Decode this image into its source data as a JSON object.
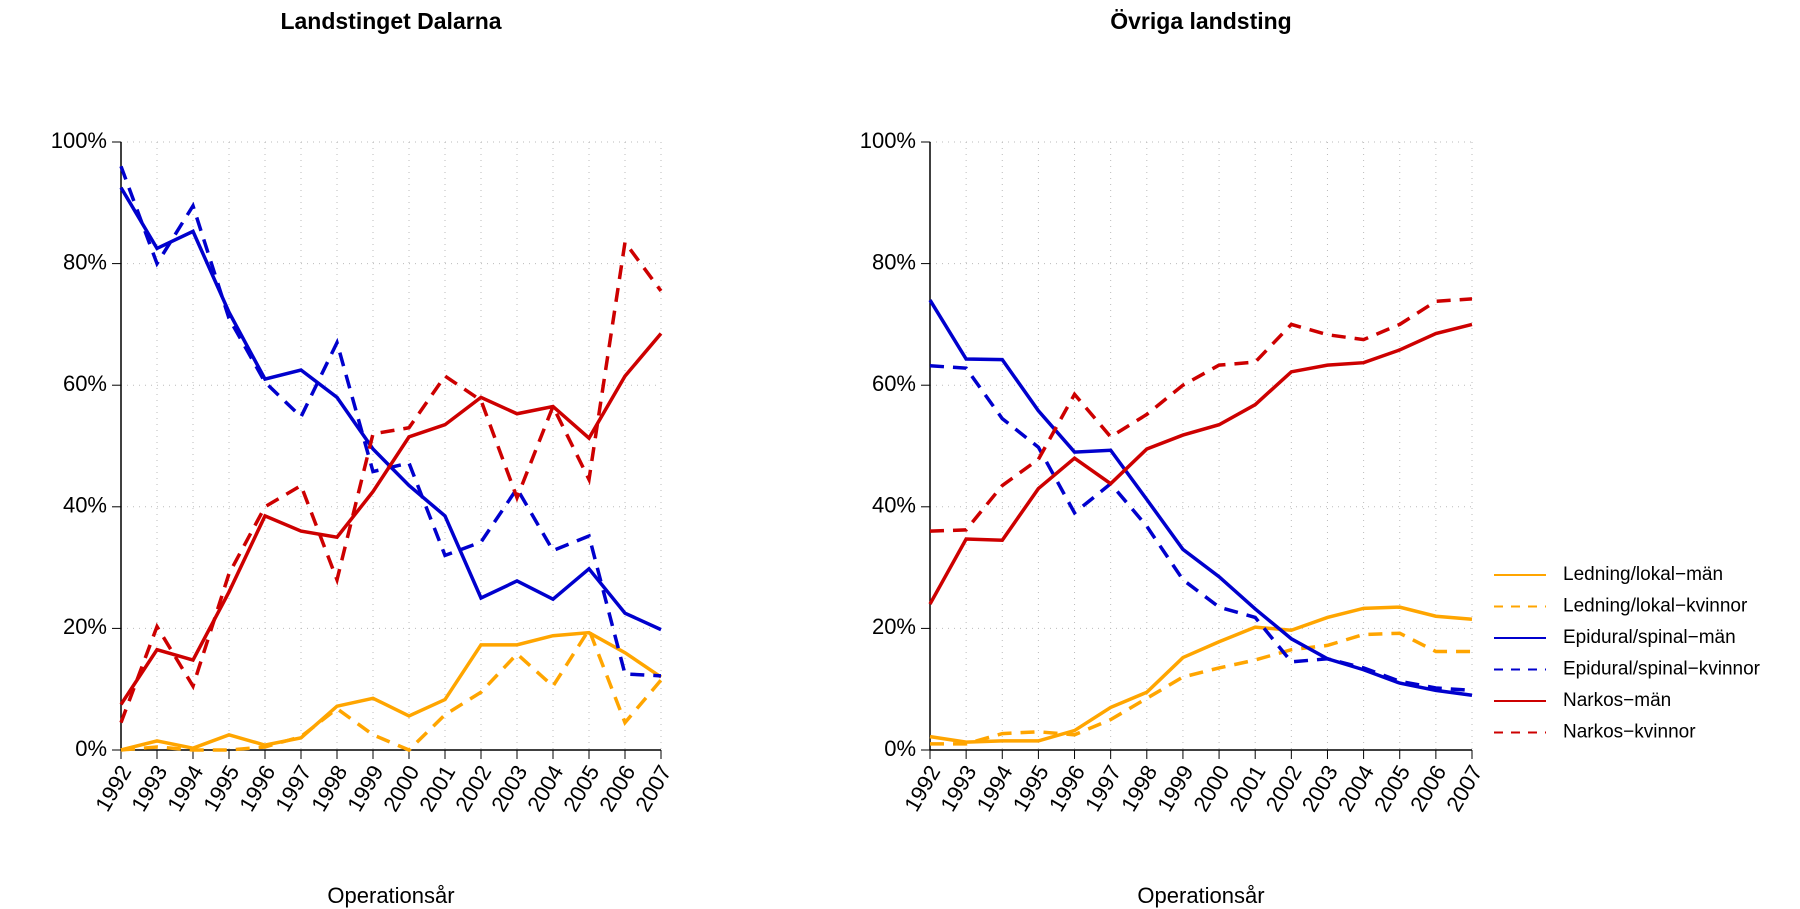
{
  "chart_data": [
    {
      "type": "line",
      "title": "Landstinget Dalarna",
      "x_label": "Operationsår",
      "x": [
        1992,
        1993,
        1994,
        1995,
        1996,
        1997,
        1998,
        1999,
        2000,
        2001,
        2002,
        2003,
        2004,
        2005,
        2006,
        2007
      ],
      "xlim": [
        1992,
        2007
      ],
      "xticks": [
        1992,
        1993,
        1994,
        1995,
        1996,
        1997,
        1998,
        1999,
        2000,
        2001,
        2002,
        2003,
        2004,
        2005,
        2006,
        2007
      ],
      "ylim": [
        0,
        100
      ],
      "yticks": [
        {
          "value": 0,
          "label": "0%"
        },
        {
          "value": 20,
          "label": "20%"
        },
        {
          "value": 40,
          "label": "40%"
        },
        {
          "value": 60,
          "label": "60%"
        },
        {
          "value": 80,
          "label": "80%"
        },
        {
          "value": 100,
          "label": "100%"
        }
      ],
      "grid": true,
      "series": [
        {
          "color": "#ffa500",
          "linestyle": "solid",
          "values": [
            0,
            1.5,
            0.3,
            2.5,
            0.8,
            2,
            7.2,
            8.5,
            5.6,
            8.3,
            17.3,
            17.3,
            18.8,
            19.3,
            16,
            12
          ]
        },
        {
          "color": "#ffa500",
          "linestyle": "dashed",
          "values": [
            0,
            0.5,
            0,
            0,
            0.5,
            2.2,
            6.8,
            2.5,
            0,
            5.8,
            9.5,
            15.8,
            10.5,
            19.8,
            4.5,
            11.5
          ]
        },
        {
          "color": "#0000cd",
          "linestyle": "solid",
          "values": [
            92.5,
            82.5,
            85.3,
            72,
            61,
            62.5,
            58,
            49.5,
            43.5,
            38.5,
            25,
            27.8,
            24.8,
            29.8,
            22.5,
            19.8
          ]
        },
        {
          "color": "#0000cd",
          "linestyle": "dashed",
          "values": [
            96,
            80,
            89.5,
            71,
            60.5,
            54.8,
            67,
            45.8,
            47.2,
            32,
            34.2,
            43,
            32.8,
            35.2,
            12.5,
            12.2
          ]
        },
        {
          "color": "#cd0000",
          "linestyle": "solid",
          "values": [
            7.5,
            16.5,
            14.8,
            26,
            38.5,
            36,
            35,
            42.5,
            51.5,
            53.5,
            58,
            55.3,
            56.5,
            51.3,
            61.5,
            68.5
          ]
        },
        {
          "color": "#cd0000",
          "linestyle": "dashed",
          "values": [
            4.5,
            20.3,
            10.5,
            29,
            40,
            43.5,
            28,
            52,
            53,
            61.5,
            57.5,
            41.5,
            56.5,
            44.5,
            83.5,
            75.5
          ]
        }
      ]
    },
    {
      "type": "line",
      "title": "Övriga landsting",
      "x_label": "Operationsår",
      "x": [
        1992,
        1993,
        1994,
        1995,
        1996,
        1997,
        1998,
        1999,
        2000,
        2001,
        2002,
        2003,
        2004,
        2005,
        2006,
        2007
      ],
      "xlim": [
        1992,
        2007
      ],
      "xticks": [
        1992,
        1993,
        1994,
        1995,
        1996,
        1997,
        1998,
        1999,
        2000,
        2001,
        2002,
        2003,
        2004,
        2005,
        2006,
        2007
      ],
      "ylim": [
        0,
        100
      ],
      "yticks": [
        {
          "value": 0,
          "label": "0%"
        },
        {
          "value": 20,
          "label": "20%"
        },
        {
          "value": 40,
          "label": "40%"
        },
        {
          "value": 60,
          "label": "60%"
        },
        {
          "value": 80,
          "label": "80%"
        },
        {
          "value": 100,
          "label": "100%"
        }
      ],
      "grid": true,
      "legend": "right",
      "series": [
        {
          "name": "Ledning/lokal−män",
          "color": "#ffa500",
          "linestyle": "solid",
          "values": [
            2.2,
            1.3,
            1.5,
            1.5,
            3.2,
            7,
            9.5,
            15.2,
            17.8,
            20.2,
            19.7,
            21.8,
            23.3,
            23.5,
            22,
            21.5
          ]
        },
        {
          "name": "Ledning/lokal−kvinnor",
          "color": "#ffa500",
          "linestyle": "dashed",
          "values": [
            1,
            1,
            2.7,
            3,
            2.5,
            5,
            8.5,
            12,
            13.5,
            14.8,
            16.5,
            17.2,
            19,
            19.2,
            16.2,
            16.2
          ]
        },
        {
          "name": "Epidural/spinal−män",
          "color": "#0000cd",
          "linestyle": "solid",
          "values": [
            74,
            64.3,
            64.2,
            55.8,
            49,
            49.3,
            41.2,
            33,
            28.5,
            23.2,
            18.3,
            15,
            13.2,
            11,
            9.8,
            9
          ]
        },
        {
          "name": "Epidural/spinal−kvinnor",
          "color": "#0000cd",
          "linestyle": "dashed",
          "values": [
            63.2,
            62.8,
            54.5,
            49.8,
            39,
            43.8,
            36.8,
            28,
            23.5,
            21.8,
            14.5,
            15,
            13.5,
            11.3,
            10.2,
            9.8
          ]
        },
        {
          "name": "Narkos−män",
          "color": "#cd0000",
          "linestyle": "solid",
          "values": [
            24,
            34.7,
            34.5,
            43,
            48,
            43.8,
            49.5,
            51.8,
            53.5,
            56.8,
            62.2,
            63.3,
            63.7,
            65.8,
            68.5,
            70
          ]
        },
        {
          "name": "Narkos−kvinnor",
          "color": "#cd0000",
          "linestyle": "dashed",
          "values": [
            36,
            36.2,
            43.5,
            47.8,
            58.5,
            51.5,
            55.2,
            60,
            63.3,
            63.8,
            70,
            68.3,
            67.5,
            70,
            73.8,
            74.2
          ]
        }
      ]
    }
  ]
}
